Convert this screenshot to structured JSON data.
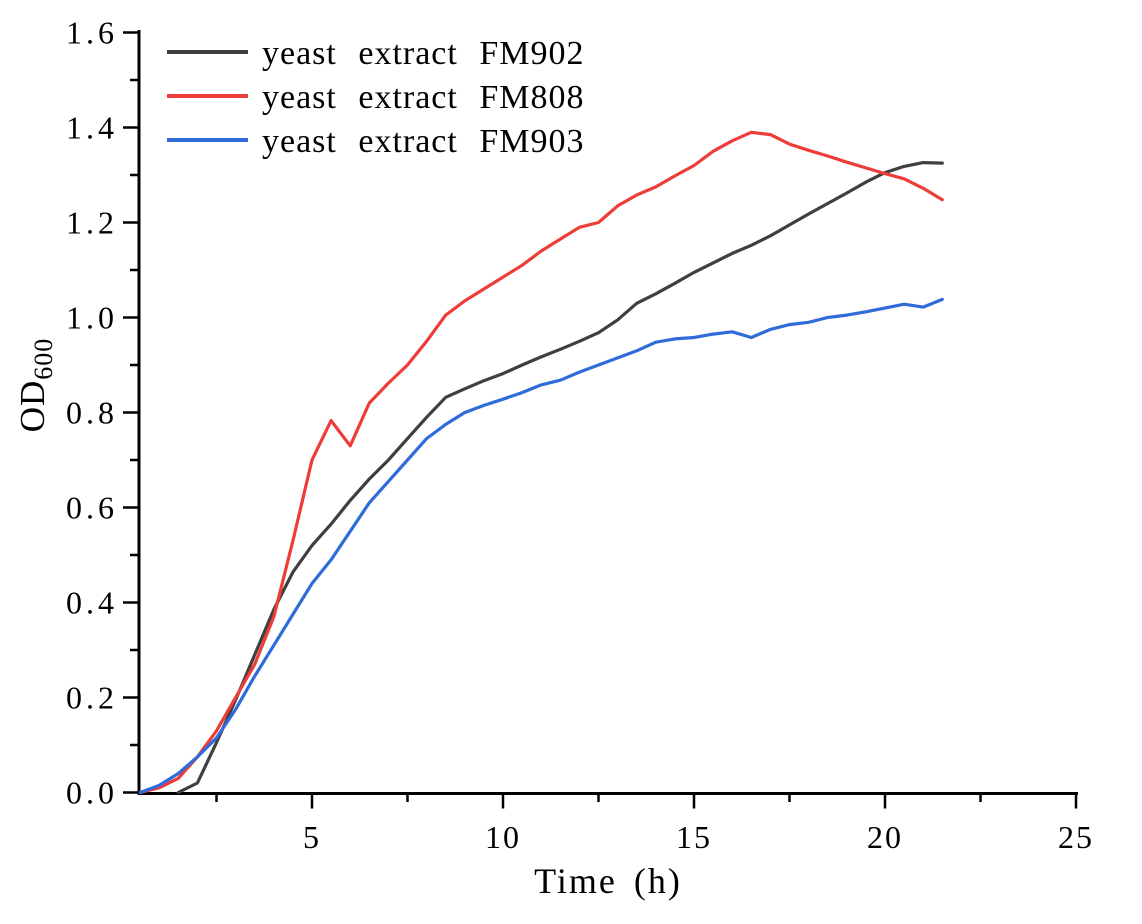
{
  "chart_data": {
    "type": "line",
    "title": "",
    "xlabel": "Time (h)",
    "ylabel": "OD",
    "ylabel_sub": "600",
    "xlim": [
      0.45,
      25.05
    ],
    "ylim": [
      0,
      1.6
    ],
    "grid": false,
    "legend_position": "top-left-inside",
    "axis_color": "#000000",
    "x_major_ticks": [
      5,
      10,
      15,
      20,
      25
    ],
    "x_tick_labels": [
      "5",
      "10",
      "15",
      "20",
      "25"
    ],
    "x_minor_ticks": [
      2.5,
      7.5,
      12.5,
      17.5,
      22.5
    ],
    "y_major_ticks": [
      0.0,
      0.2,
      0.4,
      0.6,
      0.8,
      1.0,
      1.2,
      1.4,
      1.6
    ],
    "y_tick_labels": [
      "0.0",
      "0.2",
      "0.4",
      "0.6",
      "0.8",
      "1.0",
      "1.2",
      "1.4",
      "1.6"
    ],
    "y_minor_ticks": [
      0.1,
      0.3,
      0.5,
      0.7,
      0.9,
      1.1,
      1.3,
      1.5
    ],
    "series": [
      {
        "name": "yeast extract FM902",
        "color": "#3f3f3f",
        "points": [
          [
            1.5,
            0
          ],
          [
            2,
            0.02
          ],
          [
            2.5,
            0.105
          ],
          [
            3,
            0.195
          ],
          [
            3.5,
            0.29
          ],
          [
            4,
            0.385
          ],
          [
            4.5,
            0.464
          ],
          [
            5,
            0.52
          ],
          [
            5.5,
            0.565
          ],
          [
            6,
            0.615
          ],
          [
            6.5,
            0.66
          ],
          [
            7,
            0.7
          ],
          [
            7.5,
            0.745
          ],
          [
            8,
            0.79
          ],
          [
            8.5,
            0.832
          ],
          [
            9,
            0.85
          ],
          [
            9.5,
            0.867
          ],
          [
            10,
            0.882
          ],
          [
            10.5,
            0.9
          ],
          [
            11,
            0.917
          ],
          [
            11.5,
            0.933
          ],
          [
            12,
            0.95
          ],
          [
            12.5,
            0.968
          ],
          [
            13,
            0.995
          ],
          [
            13.5,
            1.03
          ],
          [
            14,
            1.05
          ],
          [
            14.5,
            1.072
          ],
          [
            15,
            1.095
          ],
          [
            15.5,
            1.115
          ],
          [
            16,
            1.135
          ],
          [
            16.5,
            1.152
          ],
          [
            17,
            1.172
          ],
          [
            17.5,
            1.195
          ],
          [
            18,
            1.218
          ],
          [
            18.5,
            1.24
          ],
          [
            19,
            1.262
          ],
          [
            19.5,
            1.285
          ],
          [
            20,
            1.305
          ],
          [
            20.5,
            1.318
          ],
          [
            21,
            1.326
          ],
          [
            21.5,
            1.325
          ]
        ]
      },
      {
        "name": "yeast extract FM808",
        "color": "#ee3c38",
        "points": [
          [
            0.5,
            0
          ],
          [
            1,
            0.01
          ],
          [
            1.5,
            0.03
          ],
          [
            2,
            0.075
          ],
          [
            2.5,
            0.13
          ],
          [
            3,
            0.2
          ],
          [
            3.5,
            0.27
          ],
          [
            4,
            0.37
          ],
          [
            4.5,
            0.53
          ],
          [
            5,
            0.7
          ],
          [
            5.5,
            0.783
          ],
          [
            6,
            0.73
          ],
          [
            6.5,
            0.82
          ],
          [
            7,
            0.862
          ],
          [
            7.5,
            0.9
          ],
          [
            8,
            0.95
          ],
          [
            8.5,
            1.005
          ],
          [
            9,
            1.035
          ],
          [
            9.5,
            1.06
          ],
          [
            10,
            1.085
          ],
          [
            10.5,
            1.11
          ],
          [
            11,
            1.14
          ],
          [
            11.5,
            1.165
          ],
          [
            12,
            1.19
          ],
          [
            12.5,
            1.2
          ],
          [
            13,
            1.235
          ],
          [
            13.5,
            1.258
          ],
          [
            14,
            1.275
          ],
          [
            14.5,
            1.298
          ],
          [
            15,
            1.32
          ],
          [
            15.5,
            1.35
          ],
          [
            16,
            1.372
          ],
          [
            16.5,
            1.39
          ],
          [
            17,
            1.385
          ],
          [
            17.5,
            1.365
          ],
          [
            18,
            1.352
          ],
          [
            18.5,
            1.34
          ],
          [
            19,
            1.327
          ],
          [
            19.5,
            1.315
          ],
          [
            20,
            1.303
          ],
          [
            20.5,
            1.292
          ],
          [
            21,
            1.272
          ],
          [
            21.5,
            1.248
          ]
        ]
      },
      {
        "name": "yeast extract FM903",
        "color": "#2f6cd9",
        "points": [
          [
            0.5,
            0
          ],
          [
            1,
            0.015
          ],
          [
            1.5,
            0.04
          ],
          [
            2,
            0.075
          ],
          [
            2.5,
            0.115
          ],
          [
            3,
            0.175
          ],
          [
            3.5,
            0.245
          ],
          [
            4,
            0.31
          ],
          [
            4.5,
            0.375
          ],
          [
            5,
            0.44
          ],
          [
            5.5,
            0.49
          ],
          [
            6,
            0.55
          ],
          [
            6.5,
            0.61
          ],
          [
            7,
            0.655
          ],
          [
            7.5,
            0.7
          ],
          [
            8,
            0.745
          ],
          [
            8.5,
            0.775
          ],
          [
            9,
            0.8
          ],
          [
            9.5,
            0.815
          ],
          [
            10,
            0.828
          ],
          [
            10.5,
            0.842
          ],
          [
            11,
            0.858
          ],
          [
            11.5,
            0.868
          ],
          [
            12,
            0.885
          ],
          [
            12.5,
            0.9
          ],
          [
            13,
            0.915
          ],
          [
            13.5,
            0.93
          ],
          [
            14,
            0.948
          ],
          [
            14.5,
            0.955
          ],
          [
            15,
            0.958
          ],
          [
            15.5,
            0.965
          ],
          [
            16,
            0.97
          ],
          [
            16.5,
            0.958
          ],
          [
            17,
            0.975
          ],
          [
            17.5,
            0.985
          ],
          [
            18,
            0.99
          ],
          [
            18.5,
            1.0
          ],
          [
            19,
            1.005
          ],
          [
            19.5,
            1.012
          ],
          [
            20,
            1.02
          ],
          [
            20.5,
            1.028
          ],
          [
            21,
            1.022
          ],
          [
            21.5,
            1.038
          ]
        ]
      }
    ]
  }
}
